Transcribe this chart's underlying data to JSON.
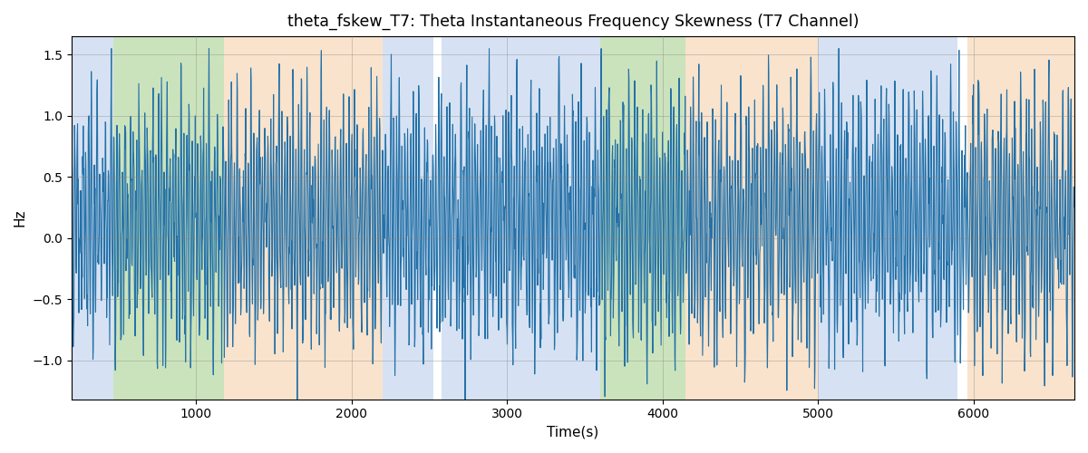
{
  "title": "theta_fskew_T7: Theta Instantaneous Frequency Skewness (T7 Channel)",
  "xlabel": "Time(s)",
  "ylabel": "Hz",
  "xlim": [
    200,
    6650
  ],
  "ylim": [
    -1.32,
    1.65
  ],
  "line_color": "#2471a8",
  "line_width": 0.8,
  "background_color": "#ffffff",
  "bg_regions": [
    {
      "xmin": 200,
      "xmax": 470,
      "color": "#aec6e8",
      "alpha": 0.5
    },
    {
      "xmin": 470,
      "xmax": 1180,
      "color": "#98c97a",
      "alpha": 0.5
    },
    {
      "xmin": 1180,
      "xmax": 2200,
      "color": "#f5c99a",
      "alpha": 0.5
    },
    {
      "xmin": 2200,
      "xmax": 2530,
      "color": "#aec6e8",
      "alpha": 0.5
    },
    {
      "xmin": 2530,
      "xmax": 2580,
      "color": "#ffffff",
      "alpha": 1.0
    },
    {
      "xmin": 2580,
      "xmax": 3600,
      "color": "#aec6e8",
      "alpha": 0.5
    },
    {
      "xmin": 3600,
      "xmax": 4150,
      "color": "#98c97a",
      "alpha": 0.5
    },
    {
      "xmin": 4150,
      "xmax": 5000,
      "color": "#f5c99a",
      "alpha": 0.5
    },
    {
      "xmin": 5000,
      "xmax": 5900,
      "color": "#aec6e8",
      "alpha": 0.5
    },
    {
      "xmin": 5900,
      "xmax": 5960,
      "color": "#ffffff",
      "alpha": 1.0
    },
    {
      "xmin": 5960,
      "xmax": 6650,
      "color": "#f5c99a",
      "alpha": 0.5
    }
  ],
  "xticks": [
    1000,
    2000,
    3000,
    4000,
    5000,
    6000
  ],
  "yticks": [
    -1.0,
    -0.5,
    0.0,
    0.5,
    1.0,
    1.5
  ],
  "n_points": 3000,
  "seed": 7
}
